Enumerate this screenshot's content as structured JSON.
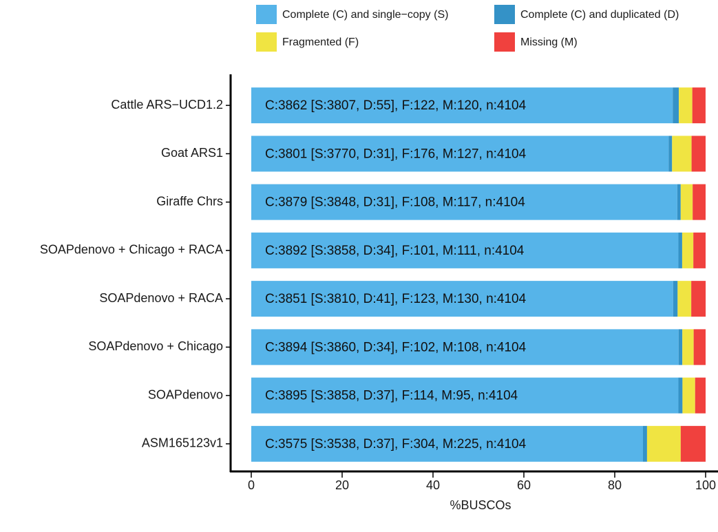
{
  "chart_data": {
    "type": "stacked-bar-horizontal",
    "x_label": "%BUSCOs",
    "categories": [
      "Cattle ARS−UCD1.2",
      "Goat ARS1",
      "Giraffe Chrs",
      "SOAPdenovo + Chicago + RACA",
      "SOAPdenovo + RACA",
      "SOAPdenovo + Chicago",
      "SOAPdenovo",
      "ASM165123v1"
    ],
    "series": [
      {
        "name": "Complete (C) and single−copy (S)",
        "color": "#56b4e9",
        "values": [
          92.76,
          91.86,
          93.76,
          94.01,
          92.84,
          94.05,
          94.01,
          86.21
        ]
      },
      {
        "name": "Complete (C) and duplicated (D)",
        "color": "#3492c7",
        "values": [
          1.34,
          0.76,
          0.76,
          0.83,
          1.0,
          0.83,
          0.9,
          0.9
        ]
      },
      {
        "name": "Fragmented (F)",
        "color": "#f0e442",
        "values": [
          2.97,
          4.29,
          2.63,
          2.46,
          3.0,
          2.49,
          2.78,
          7.41
        ]
      },
      {
        "name": "Missing (M)",
        "color": "#f0413e",
        "values": [
          2.92,
          3.09,
          2.85,
          2.7,
          3.17,
          2.63,
          2.31,
          5.48
        ]
      }
    ],
    "bar_labels": [
      "C:3862 [S:3807, D:55], F:122, M:120, n:4104",
      "C:3801 [S:3770, D:31], F:176, M:127, n:4104",
      "C:3879 [S:3848, D:31], F:108, M:117, n:4104",
      "C:3892 [S:3858, D:34], F:101, M:111, n:4104",
      "C:3851 [S:3810, D:41], F:123, M:130, n:4104",
      "C:3894 [S:3860, D:34], F:102, M:108, n:4104",
      "C:3895 [S:3858, D:37], F:114, M:95, n:4104",
      "C:3575 [S:3538, D:37], F:304, M:225, n:4104"
    ],
    "xlim": [
      0,
      100
    ],
    "xticks": [
      0,
      20,
      40,
      60,
      80,
      100
    ],
    "grid": false
  }
}
